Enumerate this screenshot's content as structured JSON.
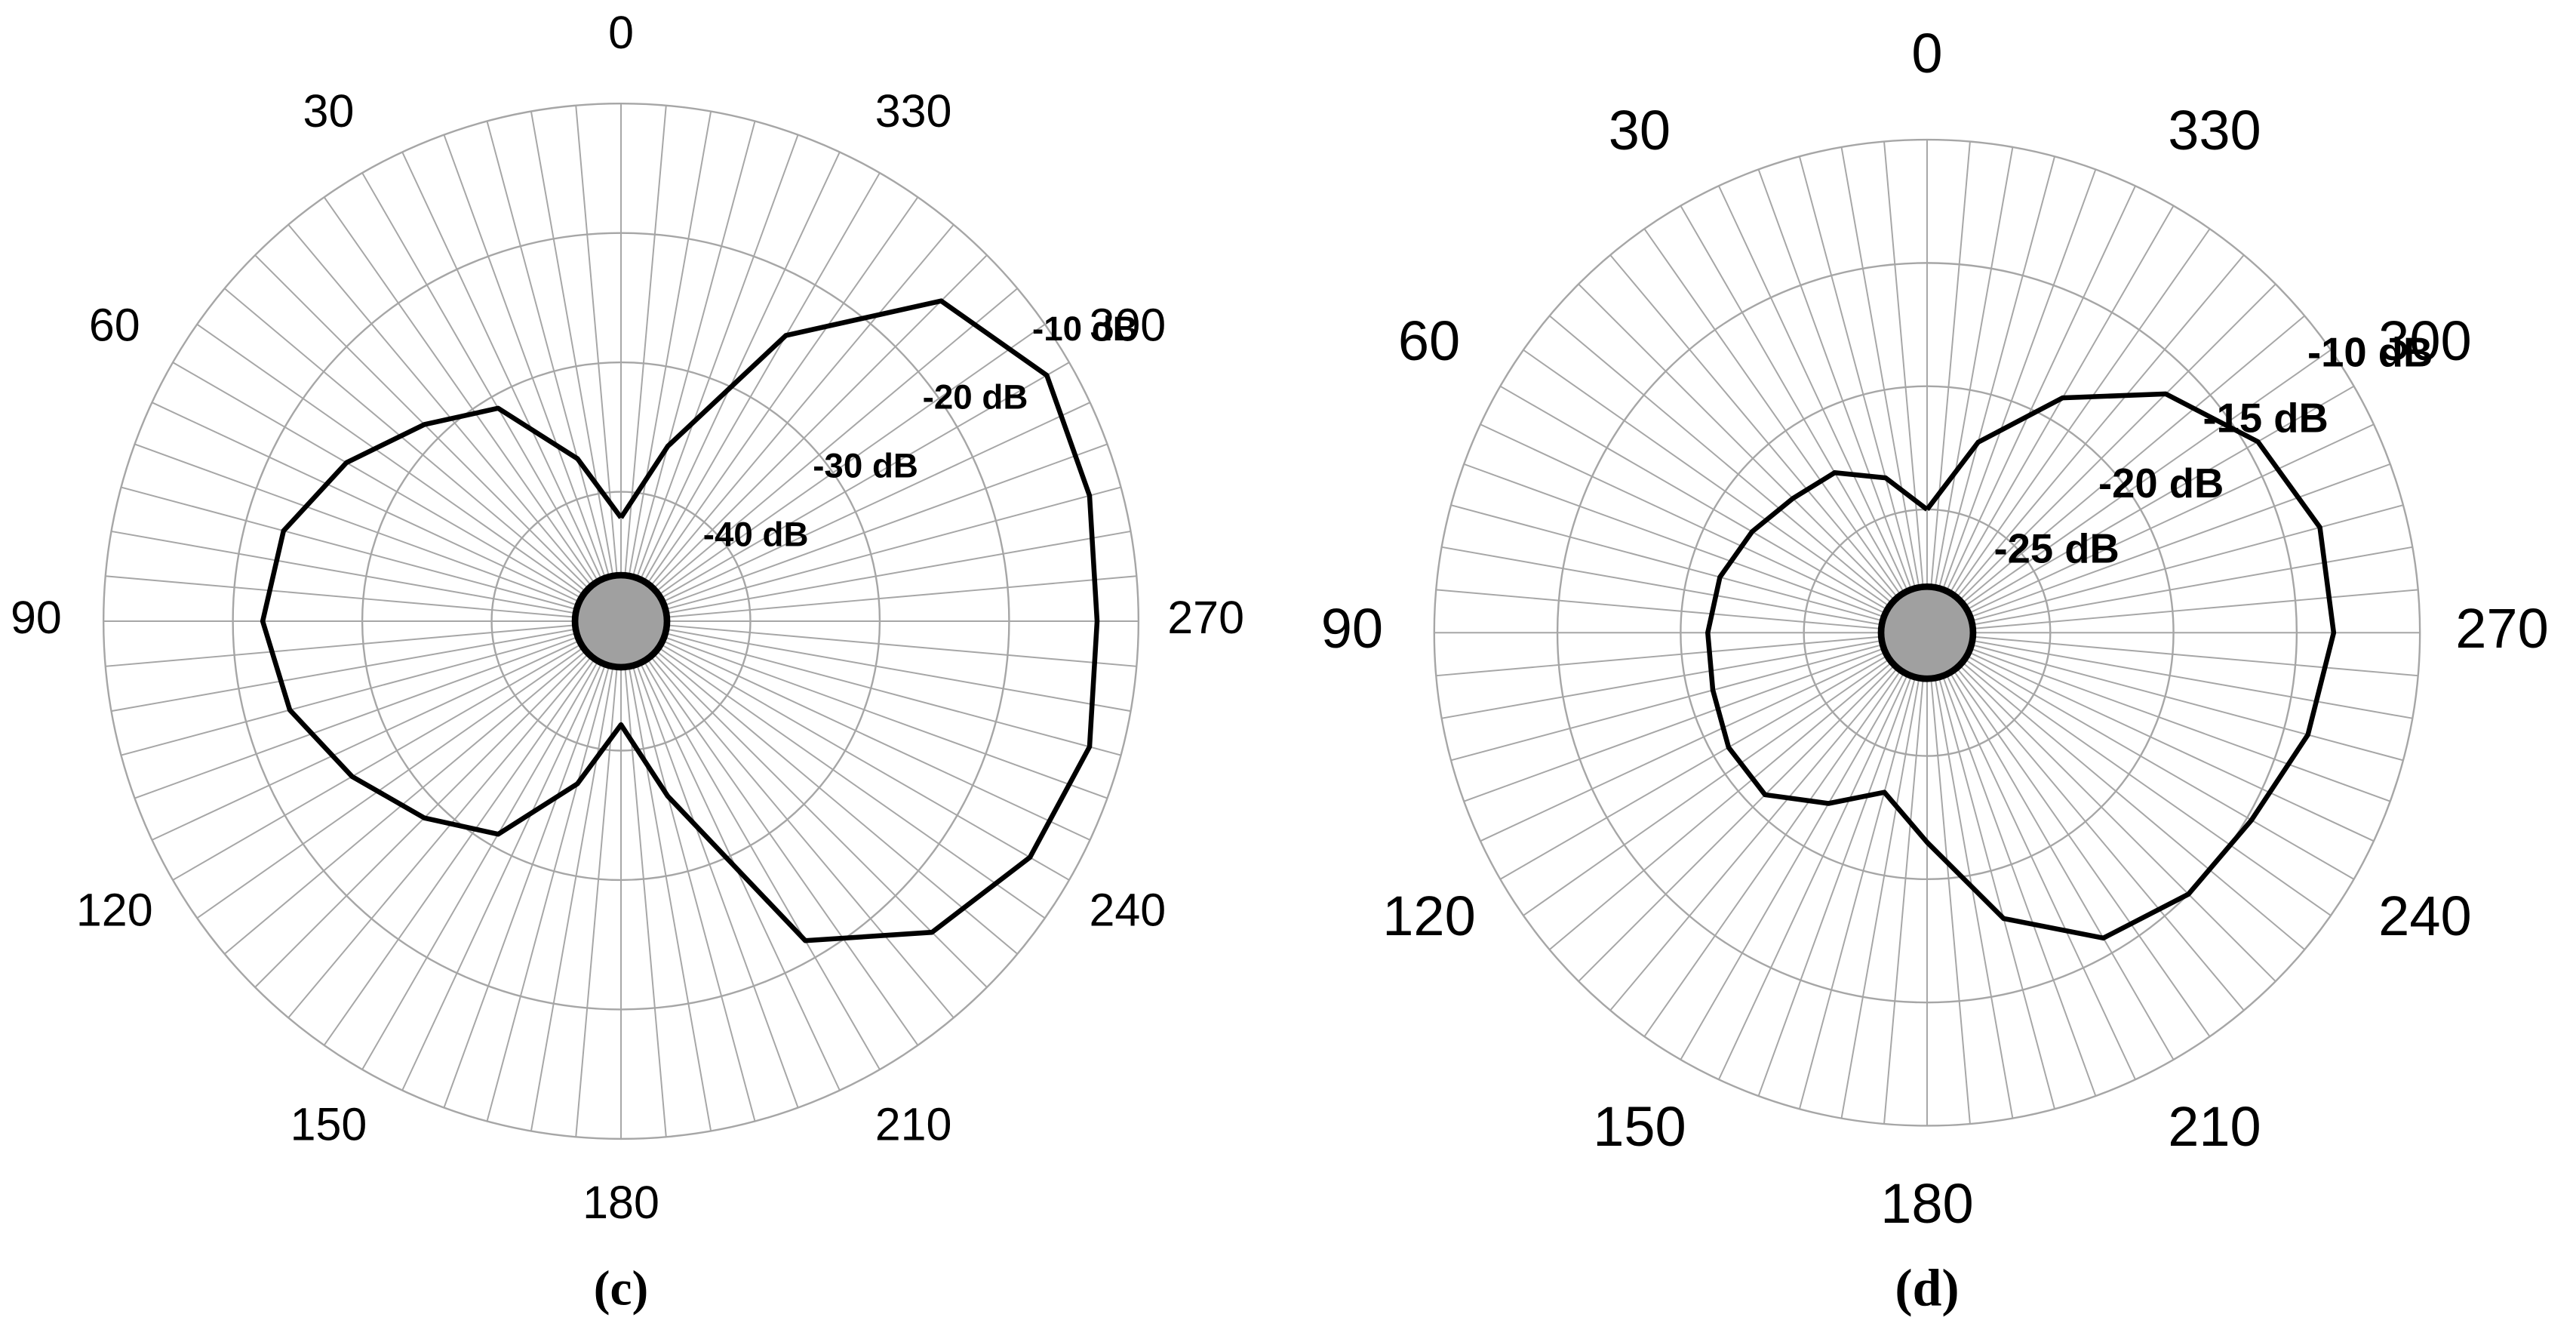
{
  "chart_data": [
    {
      "type": "polar",
      "caption": "(c)",
      "direction": "counterclockwise",
      "zero": "top",
      "spoke_step": 5,
      "theta": [
        0,
        15,
        30,
        45,
        60,
        75,
        90,
        105,
        120,
        135,
        150,
        165,
        180,
        195,
        210,
        225,
        240,
        255,
        270,
        285,
        300,
        315,
        330,
        345,
        360
      ],
      "values": [
        -42,
        -37,
        -31,
        -28.5,
        -25.5,
        -23,
        -22.3,
        -23.5,
        -26,
        -28.5,
        -31,
        -37,
        -42,
        -36,
        -21.5,
        -16,
        -13.5,
        -12.5,
        -13.2,
        -12.5,
        -12,
        -15,
        -24.5,
        -36,
        -42
      ],
      "thetaticks": [
        0,
        30,
        60,
        90,
        120,
        150,
        180,
        210,
        240,
        270,
        300,
        330
      ],
      "rlim": [
        -50,
        -10
      ],
      "rticks": [
        {
          "value": -40,
          "label": "-40 dB"
        },
        {
          "value": -30,
          "label": "-30 dB"
        },
        {
          "value": -20,
          "label": "-20 dB"
        },
        {
          "value": -10,
          "label": "-10 dB"
        }
      ]
    },
    {
      "type": "polar",
      "caption": "(d)",
      "direction": "counterclockwise",
      "zero": "top",
      "spoke_step": 5,
      "theta": [
        0,
        15,
        30,
        45,
        60,
        75,
        90,
        105,
        120,
        135,
        150,
        165,
        180,
        195,
        210,
        225,
        240,
        255,
        270,
        285,
        300,
        315,
        330,
        345,
        360
      ],
      "values": [
        -25,
        -23.5,
        -22.5,
        -22.3,
        -21.8,
        -21.3,
        -21.1,
        -21,
        -20.7,
        -20.7,
        -22,
        -23.3,
        -21.5,
        -18,
        -15.7,
        -15,
        -14.8,
        -14,
        -13.5,
        -13.5,
        -14.5,
        -16.3,
        -19,
        -22,
        -25
      ],
      "thetaticks": [
        0,
        30,
        60,
        90,
        120,
        150,
        180,
        210,
        240,
        270,
        300,
        330
      ],
      "rlim": [
        -30,
        -10
      ],
      "rticks": [
        {
          "value": -25,
          "label": "-25 dB"
        },
        {
          "value": -20,
          "label": "-20 dB"
        },
        {
          "value": -15,
          "label": "-15 dB"
        },
        {
          "value": -10,
          "label": "-10 dB"
        }
      ]
    }
  ]
}
